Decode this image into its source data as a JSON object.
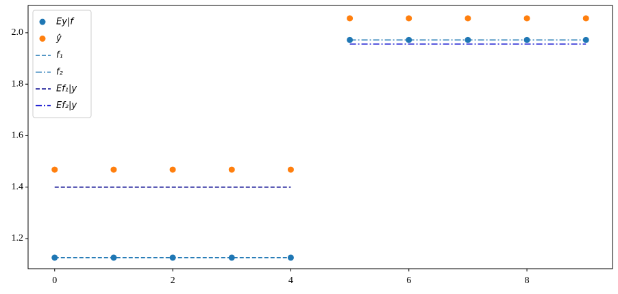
{
  "chart_data": {
    "type": "line",
    "x": [
      0,
      1,
      2,
      3,
      4,
      5,
      6,
      7,
      8,
      9
    ],
    "series": [
      {
        "name": "Ey|f",
        "color": "#1f77b4",
        "style": "marker",
        "values": [
          1.126,
          1.126,
          1.126,
          1.126,
          1.126,
          1.972,
          1.972,
          1.972,
          1.972,
          1.972
        ]
      },
      {
        "name": "ŷ",
        "color": "#ff7f0e",
        "style": "marker",
        "values": [
          1.468,
          1.468,
          1.468,
          1.468,
          1.468,
          2.056,
          2.056,
          2.056,
          2.056,
          2.056
        ]
      },
      {
        "name": "f₁",
        "color": "#1f77b4",
        "style": "dashed",
        "values": [
          1.126,
          1.126,
          1.126,
          1.126,
          1.126,
          null,
          null,
          null,
          null,
          null
        ]
      },
      {
        "name": "f₂",
        "color": "#1f77b4",
        "style": "dashdot",
        "values": [
          null,
          null,
          null,
          null,
          null,
          1.972,
          1.972,
          1.972,
          1.972,
          1.972
        ]
      },
      {
        "name": "Ef₁|y",
        "color": "#00008b",
        "style": "dashed",
        "values": [
          1.4,
          1.4,
          1.4,
          1.4,
          1.4,
          null,
          null,
          null,
          null,
          null
        ]
      },
      {
        "name": "Ef₂|y",
        "color": "#0000cd",
        "style": "dashdot",
        "values": [
          null,
          null,
          null,
          null,
          null,
          1.956,
          1.956,
          1.956,
          1.956,
          1.956
        ]
      }
    ],
    "xlim": [
      -0.45,
      9.45
    ],
    "ylim": [
      1.083,
      2.106
    ],
    "xticks": [
      0,
      2,
      4,
      6,
      8
    ],
    "yticks": [
      1.2,
      1.4,
      1.6,
      1.8,
      {
        "value": 2,
        "label": "2.0"
      }
    ],
    "grid": false,
    "legend": "upper left"
  }
}
